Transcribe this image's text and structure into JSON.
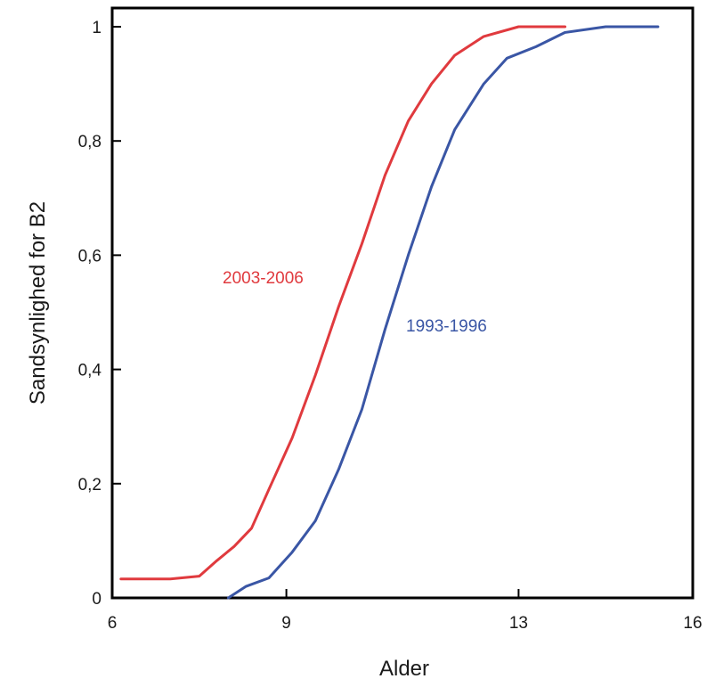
{
  "chart_data": {
    "type": "line",
    "title": "",
    "xlabel": "Alder",
    "ylabel": "Sandsynlighed for B2",
    "xlim": [
      6,
      16
    ],
    "ylim": [
      0,
      1
    ],
    "x_ticks": [
      6,
      9,
      13,
      16
    ],
    "x_tick_labels": [
      "6",
      "9",
      "13",
      "16"
    ],
    "y_ticks": [
      0,
      0.2,
      0.4,
      0.6,
      0.8,
      1
    ],
    "y_tick_labels": [
      "0",
      "0,2",
      "0,4",
      "0,6",
      "0,8",
      "1"
    ],
    "grid": false,
    "legend": "none",
    "series": [
      {
        "name": "2003-2006",
        "color": "#e03a3e",
        "x": [
          6.15,
          7.0,
          7.5,
          7.8,
          8.1,
          8.4,
          8.7,
          9.1,
          9.5,
          9.9,
          10.3,
          10.7,
          11.1,
          11.5,
          11.9,
          12.4,
          13.0,
          13.8
        ],
        "y": [
          0.033,
          0.033,
          0.038,
          0.065,
          0.09,
          0.122,
          0.19,
          0.28,
          0.39,
          0.51,
          0.62,
          0.74,
          0.835,
          0.9,
          0.95,
          0.983,
          1.0,
          1.0
        ]
      },
      {
        "name": "1993-1996",
        "color": "#3a56a5",
        "x": [
          8.0,
          8.3,
          8.7,
          9.1,
          9.5,
          9.9,
          10.3,
          10.7,
          11.1,
          11.5,
          11.9,
          12.4,
          12.8,
          13.3,
          13.8,
          14.5,
          15.4
        ],
        "y": [
          0.0,
          0.02,
          0.035,
          0.08,
          0.135,
          0.225,
          0.33,
          0.47,
          0.6,
          0.72,
          0.82,
          0.9,
          0.945,
          0.965,
          0.99,
          1.0,
          1.0
        ]
      }
    ]
  }
}
